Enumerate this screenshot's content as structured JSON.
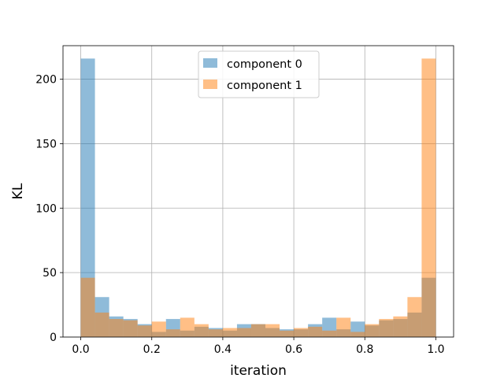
{
  "chart_data": {
    "type": "bar",
    "subtype": "overlapping-histogram",
    "xlabel": "iteration",
    "ylabel": "KL",
    "xlim": [
      -0.05,
      1.05
    ],
    "ylim": [
      0,
      226
    ],
    "x_ticks": [
      0.0,
      0.2,
      0.4,
      0.6,
      0.8,
      1.0
    ],
    "x_tick_labels": [
      "0.0",
      "0.2",
      "0.4",
      "0.6",
      "0.8",
      "1.0"
    ],
    "y_ticks": [
      0,
      50,
      100,
      150,
      200
    ],
    "y_tick_labels": [
      "0",
      "50",
      "100",
      "150",
      "200"
    ],
    "grid": true,
    "legend_position": "top-center",
    "bin_edges": [
      0.0,
      0.04,
      0.08,
      0.12,
      0.16,
      0.2,
      0.24,
      0.28,
      0.32,
      0.36,
      0.4,
      0.44,
      0.48,
      0.52,
      0.56,
      0.6,
      0.64,
      0.68,
      0.72,
      0.76,
      0.8,
      0.84,
      0.88,
      0.92,
      0.96,
      1.0
    ],
    "series": [
      {
        "name": "component 0",
        "color": "#1f77b4",
        "alpha": 0.5,
        "values": [
          216,
          31,
          16,
          14,
          10,
          4,
          14,
          5,
          8,
          7,
          5,
          10,
          10,
          7,
          6,
          6,
          10,
          15,
          6,
          12,
          9,
          13,
          14,
          19,
          46
        ]
      },
      {
        "name": "component 1",
        "color": "#ff7f0e",
        "alpha": 0.5,
        "values": [
          46,
          19,
          14,
          13,
          9,
          12,
          6,
          15,
          10,
          6,
          7,
          7,
          10,
          10,
          5,
          7,
          8,
          5,
          15,
          4,
          10,
          14,
          16,
          31,
          216
        ]
      }
    ]
  }
}
